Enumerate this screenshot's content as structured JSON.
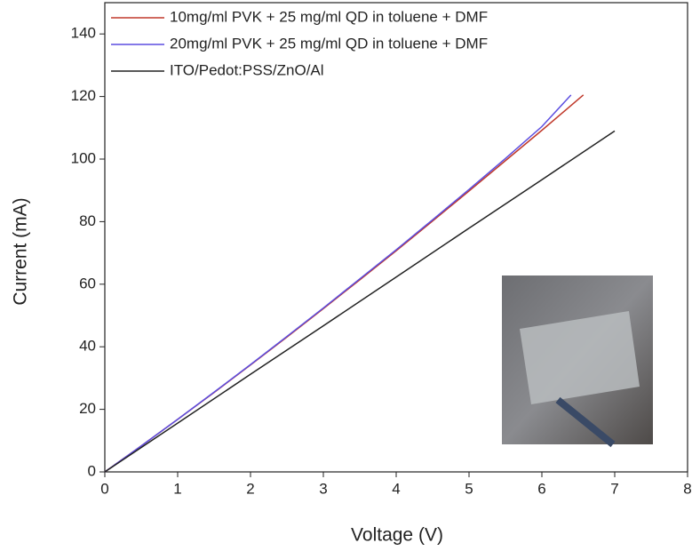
{
  "chart_data": {
    "type": "line",
    "x_label": "Voltage (V)",
    "y_label": "Current (mA)",
    "xlim": [
      0,
      8
    ],
    "ylim": [
      0,
      150
    ],
    "xticks": [
      0,
      1,
      2,
      3,
      4,
      5,
      6,
      7,
      8
    ],
    "yticks": [
      0,
      20,
      40,
      60,
      80,
      100,
      120,
      140
    ],
    "series": [
      {
        "name": "10mg/ml PVK + 25 mg/ml QD in toluene + DMF",
        "color": "#c0392b",
        "x": [
          0,
          0.5,
          1,
          1.5,
          2,
          2.5,
          3,
          3.5,
          4,
          4.5,
          5,
          5.5,
          6,
          6.57
        ],
        "values": [
          0,
          8.3,
          16.8,
          25.4,
          34.2,
          43.1,
          52.2,
          61.4,
          70.7,
          80.2,
          89.8,
          99.5,
          109.2,
          120.5
        ]
      },
      {
        "name": "20mg/ml PVK + 25 mg/ml QD in toluene + DMF",
        "color": "#5b4de0",
        "x": [
          0,
          0.5,
          1,
          1.5,
          2,
          2.5,
          3,
          3.5,
          4,
          4.5,
          5,
          5.5,
          6,
          6.4
        ],
        "values": [
          0,
          8.3,
          16.8,
          25.5,
          34.3,
          43.3,
          52.4,
          61.7,
          71.0,
          80.6,
          90.3,
          100.2,
          110.4,
          120.5
        ]
      },
      {
        "name": "ITO/Pedot:PSS/ZnO/Al",
        "color": "#222222",
        "x": [
          0,
          1,
          2,
          3,
          4,
          5,
          6,
          7
        ],
        "values": [
          0,
          15.6,
          31.2,
          46.7,
          62.3,
          77.9,
          93.4,
          109
        ]
      }
    ]
  }
}
